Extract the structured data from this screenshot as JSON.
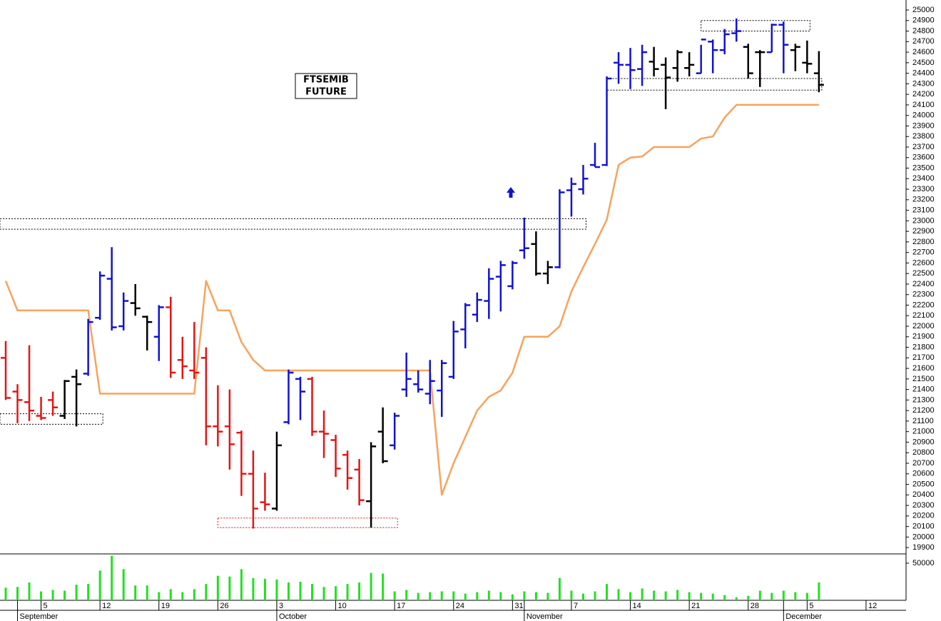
{
  "chart_data": {
    "type": "ohlc",
    "annotation": [
      "FTSEMIB",
      "FUTURE"
    ],
    "categories": [
      null,
      null,
      null,
      "5",
      null,
      null,
      null,
      null,
      "12",
      null,
      null,
      null,
      null,
      "19",
      null,
      null,
      null,
      null,
      "26",
      null,
      null,
      null,
      null,
      "3",
      null,
      null,
      null,
      null,
      "10",
      null,
      null,
      null,
      null,
      "17",
      null,
      null,
      null,
      null,
      "24",
      null,
      null,
      null,
      null,
      "31",
      null,
      null,
      null,
      null,
      "7",
      null,
      null,
      null,
      null,
      "14",
      null,
      null,
      null,
      null,
      "21",
      null,
      null,
      null,
      null,
      "28",
      null,
      null,
      null,
      null,
      "5",
      null,
      null,
      null,
      null,
      "12",
      null,
      null,
      null
    ],
    "month_labels": [
      {
        "index": 1,
        "label": "September"
      },
      {
        "index": 23,
        "label": "October"
      },
      {
        "index": 44,
        "label": "November"
      },
      {
        "index": 66,
        "label": "December"
      }
    ],
    "open": [
      21700,
      21380,
      21280,
      21150,
      21300,
      21150,
      21520,
      21550,
      22080,
      22450,
      22000,
      22220,
      22090,
      21900,
      22180,
      21680,
      21580,
      21700,
      21050,
      21050,
      20990,
      20600,
      20330,
      20270,
      21090,
      21500,
      21500,
      21000,
      20920,
      20780,
      20640,
      20340,
      21000,
      20870,
      21400,
      21450,
      21360,
      21390,
      21520,
      21970,
      22110,
      22240,
      22470,
      22380,
      22720,
      22780,
      22500,
      22560,
      23290,
      23300,
      23530,
      23530,
      24500,
      24480,
      24440,
      24510,
      24480,
      24450,
      24450,
      24400,
      24700,
      24620,
      24780,
      24650,
      24600,
      24600,
      24860,
      24620,
      24500,
      24400,
      null,
      null,
      null,
      null,
      null,
      null,
      null
    ],
    "high": [
      21860,
      21450,
      21820,
      21330,
      21380,
      21490,
      21590,
      22070,
      22520,
      22750,
      22320,
      22400,
      22100,
      22200,
      22280,
      21900,
      22040,
      21800,
      21440,
      21400,
      21010,
      20820,
      20610,
      21000,
      21590,
      21520,
      21520,
      21200,
      20970,
      20820,
      20740,
      20900,
      21230,
      21180,
      21750,
      21580,
      21680,
      21680,
      22050,
      22220,
      22320,
      22550,
      22620,
      22620,
      23030,
      22900,
      22620,
      23300,
      23410,
      23530,
      23740,
      24370,
      24600,
      24640,
      24670,
      24650,
      24550,
      24620,
      24600,
      24670,
      24720,
      24820,
      24920,
      24680,
      24620,
      24870,
      24890,
      24680,
      24710,
      24610,
      null,
      null,
      null,
      null,
      null,
      null,
      null
    ],
    "low": [
      21300,
      21080,
      21100,
      21110,
      21150,
      21120,
      21050,
      21530,
      22060,
      21960,
      21960,
      22100,
      21770,
      21670,
      21510,
      21500,
      21500,
      20870,
      20860,
      20640,
      20390,
      20080,
      20250,
      20250,
      21070,
      21110,
      20960,
      20750,
      20570,
      20450,
      20300,
      20090,
      20700,
      20830,
      21330,
      21370,
      21260,
      21140,
      21500,
      21790,
      22040,
      22070,
      22140,
      22350,
      22640,
      22480,
      22400,
      22550,
      23040,
      23250,
      23510,
      23520,
      24300,
      24250,
      24280,
      24370,
      24060,
      24320,
      24370,
      24400,
      24400,
      24580,
      24700,
      24350,
      24270,
      24600,
      24400,
      24420,
      24400,
      24220,
      null,
      null,
      null,
      null,
      null,
      null,
      null
    ],
    "close": [
      21320,
      21300,
      21200,
      21130,
      21230,
      21480,
      21450,
      22040,
      22480,
      21990,
      22240,
      22170,
      22040,
      22180,
      21560,
      21620,
      21560,
      21050,
      21000,
      20880,
      20600,
      20270,
      20310,
      20870,
      21560,
      21380,
      21000,
      20980,
      20650,
      20560,
      20350,
      20860,
      20720,
      21150,
      21500,
      21400,
      21480,
      21650,
      21950,
      22200,
      22250,
      22450,
      22580,
      22600,
      22740,
      22500,
      22560,
      23270,
      23350,
      23400,
      23510,
      24350,
      24480,
      24430,
      24600,
      24440,
      24360,
      24600,
      24480,
      24720,
      24620,
      24770,
      24800,
      24400,
      24600,
      24860,
      24670,
      24650,
      24490,
      24290,
      null,
      null,
      null,
      null,
      null,
      null,
      null
    ],
    "colors": [
      "#e51414",
      "#e51414",
      "#e51414",
      "#e51414",
      "#e51414",
      "#000000",
      "#000000",
      "#1212d2",
      "#1212d2",
      "#1212d2",
      "#1212d2",
      "#000000",
      "#000000",
      "#1212d2",
      "#e51414",
      "#e51414",
      "#e51414",
      "#e51414",
      "#e51414",
      "#e51414",
      "#e51414",
      "#e51414",
      "#e51414",
      "#000000",
      "#1212d2",
      "#1212d2",
      "#e51414",
      "#e51414",
      "#e51414",
      "#e51414",
      "#e51414",
      "#000000",
      "#000000",
      "#1212d2",
      "#1212d2",
      "#1212d2",
      "#1212d2",
      "#1212d2",
      "#1212d2",
      "#1212d2",
      "#1212d2",
      "#1212d2",
      "#1212d2",
      "#1212d2",
      "#1212d2",
      "#000000",
      "#000000",
      "#1212d2",
      "#1212d2",
      "#1212d2",
      "#1212d2",
      "#1212d2",
      "#1212d2",
      "#1212d2",
      "#1212d2",
      "#000000",
      "#000000",
      "#000000",
      "#000000",
      "#1212d2",
      "#1212d2",
      "#1212d2",
      "#1212d2",
      "#000000",
      "#000000",
      "#1212d2",
      "#1212d2",
      "#000000",
      "#000000",
      "#000000",
      null,
      null,
      null,
      null,
      null,
      null,
      null
    ],
    "stop_line": {
      "color": "#f7a35c",
      "values": [
        22430,
        22150,
        22150,
        22150,
        22150,
        22150,
        22150,
        22150,
        21360,
        21360,
        21360,
        21360,
        21360,
        21360,
        21360,
        21360,
        21360,
        22430,
        22150,
        22150,
        21850,
        21680,
        21580,
        21580,
        21580,
        21580,
        21580,
        21580,
        21580,
        21580,
        21580,
        21580,
        21580,
        21580,
        21580,
        21580,
        21580,
        20400,
        20700,
        20950,
        21200,
        21330,
        21390,
        21560,
        21900,
        21900,
        21900,
        22000,
        22330,
        22560,
        22780,
        23010,
        23530,
        23600,
        23610,
        23700,
        23700,
        23700,
        23700,
        23780,
        23800,
        23980,
        24100,
        24100,
        24100,
        24100,
        24100,
        24100,
        24100,
        24100,
        null,
        null,
        null,
        null,
        null,
        null,
        null
      ]
    },
    "zones": [
      {
        "from": 0,
        "to": 8,
        "low": 21070,
        "high": 21170,
        "color": "#000000"
      },
      {
        "from": 0,
        "to": 49,
        "low": 22920,
        "high": 23020,
        "color": "#000000"
      },
      {
        "from": 18,
        "to": 33,
        "low": 20090,
        "high": 20180,
        "color": "#e51414"
      },
      {
        "from": 59,
        "to": 68,
        "low": 24800,
        "high": 24900,
        "color": "#000000"
      },
      {
        "from": 51,
        "to": 69,
        "low": 24240,
        "high": 24350,
        "color": "#000000"
      }
    ],
    "ylim": [
      19840,
      25095
    ],
    "yticks": [
      19900,
      20000,
      20100,
      20200,
      20300,
      20400,
      20500,
      20600,
      20700,
      20800,
      20900,
      21000,
      21100,
      21200,
      21300,
      21400,
      21500,
      21600,
      21700,
      21800,
      21900,
      22000,
      22100,
      22200,
      22300,
      22400,
      22500,
      22600,
      22700,
      22800,
      22900,
      23000,
      23100,
      23200,
      23300,
      23400,
      23500,
      23600,
      23700,
      23800,
      23900,
      24000,
      24100,
      24200,
      24300,
      24400,
      24500,
      24600,
      24700,
      24800,
      24900,
      25000
    ],
    "volume": {
      "color": "#22e022",
      "ylim": [
        0,
        62500
      ],
      "yticks": [
        50000
      ],
      "values": [
        17000,
        18000,
        24000,
        12000,
        14000,
        13000,
        21000,
        22000,
        40000,
        60000,
        42000,
        20000,
        20000,
        11000,
        15000,
        11000,
        15000,
        22000,
        33000,
        32000,
        42000,
        30000,
        29000,
        28000,
        24000,
        25000,
        22000,
        18000,
        19000,
        22000,
        24000,
        37000,
        36000,
        12000,
        14000,
        10000,
        11000,
        12000,
        12000,
        9000,
        11000,
        13000,
        11000,
        8000,
        12000,
        11000,
        10000,
        30000,
        13000,
        9000,
        12000,
        22000,
        15000,
        11000,
        16000,
        13000,
        12000,
        14000,
        11000,
        10000,
        9000,
        7000,
        4000,
        6000,
        13000,
        10000,
        13000,
        11000,
        10000,
        24000,
        null,
        null,
        null,
        null,
        null,
        null,
        null
      ]
    }
  }
}
